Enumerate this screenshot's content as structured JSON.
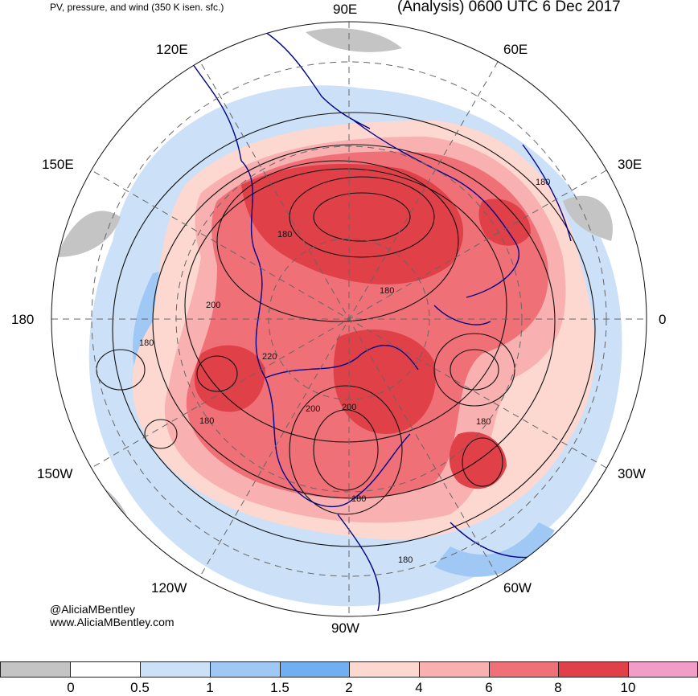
{
  "header": {
    "title_left": "PV, pressure, and wind (350 K isen. sfc.)",
    "title_right": "(Analysis) 0600 UTC 6 Dec 2017"
  },
  "map": {
    "longitude_labels": [
      "90E",
      "60E",
      "30E",
      "0",
      "30W",
      "60W",
      "90W",
      "120W",
      "150W",
      "180",
      "150E",
      "120E"
    ],
    "pressure_contour_labels": [
      "180",
      "180",
      "200",
      "180",
      "220",
      "200",
      "200",
      "180",
      "180",
      "180",
      "180",
      "180"
    ],
    "colors": {
      "high_pv_dark": "#e04048",
      "high_pv": "#f07078",
      "mid_pv": "#f8b0b0",
      "low_pv": "#fcd8d0",
      "light_blue": "#cce0f8",
      "blue": "#a0c8f4",
      "dark_blue": "#70b0f0",
      "gray": "#c4c4c4",
      "coastline": "#00008b"
    }
  },
  "colorbar": {
    "colors": [
      "#c4c4c4",
      "#ffffff",
      "#cce0f8",
      "#a0c8f4",
      "#70b0f0",
      "#fcd8d0",
      "#f8b0b0",
      "#f07078",
      "#e04048",
      "#f49cc8"
    ],
    "labels": [
      "0",
      "0.5",
      "1",
      "1.5",
      "2",
      "4",
      "6",
      "8",
      "10"
    ]
  },
  "credits": {
    "handle": "@AliciaMBentley",
    "website": "www.AliciaMBentley.com"
  }
}
